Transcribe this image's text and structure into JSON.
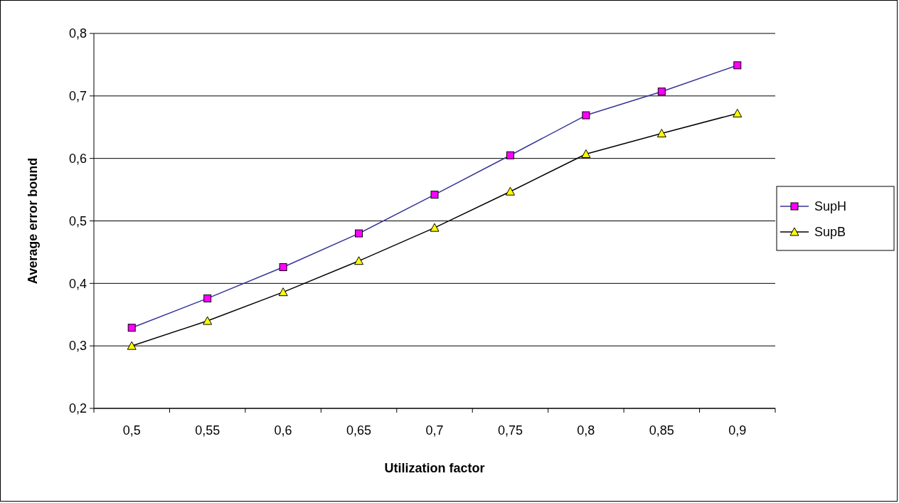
{
  "chart_data": {
    "type": "line",
    "xlabel": "Utilization factor",
    "ylabel": "Average error bound",
    "categories": [
      "0,5",
      "0,55",
      "0,6",
      "0,65",
      "0,7",
      "0,75",
      "0,8",
      "0,85",
      "0,9"
    ],
    "series": [
      {
        "name": "SupH",
        "color": "#333399",
        "marker": "square",
        "values": [
          0.329,
          0.376,
          0.426,
          0.48,
          0.542,
          0.605,
          0.669,
          0.707,
          0.749
        ]
      },
      {
        "name": "SupB",
        "color": "#000000",
        "marker": "triangle",
        "values": [
          0.3,
          0.34,
          0.386,
          0.436,
          0.489,
          0.547,
          0.607,
          0.64,
          0.672
        ]
      }
    ],
    "ylim": [
      0.2,
      0.8
    ],
    "yticks": [
      {
        "value": 0.2,
        "label": "0,2"
      },
      {
        "value": 0.3,
        "label": "0,3"
      },
      {
        "value": 0.4,
        "label": "0,4"
      },
      {
        "value": 0.5,
        "label": "0,5"
      },
      {
        "value": 0.6,
        "label": "0,6"
      },
      {
        "value": 0.7,
        "label": "0,7"
      },
      {
        "value": 0.8,
        "label": "0,8"
      }
    ],
    "grid": "y",
    "legend": "right",
    "line_style": "solid"
  }
}
